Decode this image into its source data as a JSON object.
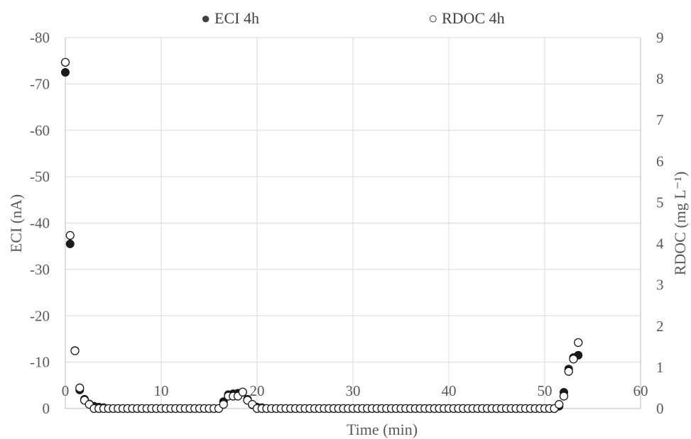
{
  "chart_data": {
    "type": "scatter",
    "title": "",
    "xlabel": "Time (min)",
    "ylabel_left": "ECI (nA)",
    "ylabel_right": "RDOC (mg L⁻¹)",
    "xlim": [
      0,
      60
    ],
    "ylim_left": [
      0,
      -80
    ],
    "ylim_right": [
      0,
      9
    ],
    "x_ticks": [
      0,
      10,
      20,
      30,
      40,
      50,
      60
    ],
    "y_left_ticks": [
      0,
      -10,
      -20,
      -30,
      -40,
      -50,
      -60,
      -70,
      -80
    ],
    "y_right_ticks": [
      0,
      1,
      2,
      3,
      4,
      5,
      6,
      7,
      8,
      9
    ],
    "grid": true,
    "legend_position": "top-center",
    "legend": [
      {
        "name": "ECI 4h",
        "marker": "●"
      },
      {
        "name": "RDOC 4h",
        "marker": "○"
      }
    ],
    "series": [
      {
        "name": "ECI 4h",
        "axis": "left",
        "marker": "filled-circle",
        "color": "#1a1a1a",
        "x": [
          0.0,
          0.5,
          1.0,
          1.5,
          2.0,
          2.5,
          3.0,
          3.5,
          4.0,
          4.5,
          5.0,
          5.5,
          6.0,
          6.5,
          7.0,
          7.5,
          8.0,
          8.5,
          9.0,
          9.5,
          10.0,
          10.5,
          11.0,
          11.5,
          12.0,
          12.5,
          13.0,
          13.5,
          14.0,
          14.5,
          15.0,
          15.5,
          16.0,
          16.5,
          17.0,
          17.5,
          18.0,
          18.5,
          19.0,
          19.5,
          20.0,
          20.5,
          21.0,
          21.5,
          22.0,
          22.5,
          23.0,
          23.5,
          24.0,
          24.5,
          25.0,
          25.5,
          26.0,
          26.5,
          27.0,
          27.5,
          28.0,
          28.5,
          29.0,
          29.5,
          30.0,
          30.5,
          31.0,
          31.5,
          32.0,
          32.5,
          33.0,
          33.5,
          34.0,
          34.5,
          35.0,
          35.5,
          36.0,
          36.5,
          37.0,
          37.5,
          38.0,
          38.5,
          39.0,
          39.5,
          40.0,
          40.5,
          41.0,
          41.5,
          42.0,
          42.5,
          43.0,
          43.5,
          44.0,
          44.5,
          45.0,
          45.5,
          46.0,
          46.5,
          47.0,
          47.5,
          48.0,
          48.5,
          49.0,
          49.5,
          50.0,
          50.5,
          51.0,
          51.5,
          52.0,
          52.5,
          53.0,
          53.5
        ],
        "y": [
          -72.5,
          -35.5,
          -12.5,
          -4.0,
          -2.0,
          -1.0,
          -0.5,
          -0.3,
          -0.2,
          0,
          0,
          0,
          0,
          0,
          0,
          0,
          0,
          0,
          0,
          0,
          0,
          0,
          0,
          0,
          0,
          0,
          0,
          0,
          0,
          0,
          0,
          0,
          0,
          -1.5,
          -3.0,
          -3.2,
          -3.3,
          -3.5,
          -2.0,
          -0.8,
          -0.3,
          -0.2,
          0,
          0,
          0,
          0,
          0,
          0,
          0,
          0,
          0,
          0,
          0,
          0,
          0,
          0,
          0,
          0,
          0,
          0,
          0,
          0,
          0,
          0,
          0,
          0,
          0,
          0,
          0,
          0,
          0,
          0,
          0,
          0,
          0,
          0,
          0,
          0,
          0,
          0,
          0,
          0,
          0,
          0,
          0,
          0,
          0,
          0,
          0,
          0,
          0,
          0,
          0,
          0,
          0,
          0,
          0,
          0,
          0,
          0,
          0,
          0,
          0,
          -0.5,
          -3.5,
          -8.5,
          -11.0,
          -11.5
        ]
      },
      {
        "name": "RDOC 4h",
        "axis": "right",
        "marker": "open-circle",
        "color": "#1a1a1a",
        "x": [
          0.0,
          0.5,
          1.0,
          1.5,
          2.0,
          2.5,
          3.0,
          3.5,
          4.0,
          4.5,
          5.0,
          5.5,
          6.0,
          6.5,
          7.0,
          7.5,
          8.0,
          8.5,
          9.0,
          9.5,
          10.0,
          10.5,
          11.0,
          11.5,
          12.0,
          12.5,
          13.0,
          13.5,
          14.0,
          14.5,
          15.0,
          15.5,
          16.0,
          16.5,
          17.0,
          17.5,
          18.0,
          18.5,
          19.0,
          19.5,
          20.0,
          20.5,
          21.0,
          21.5,
          22.0,
          22.5,
          23.0,
          23.5,
          24.0,
          24.5,
          25.0,
          25.5,
          26.0,
          26.5,
          27.0,
          27.5,
          28.0,
          28.5,
          29.0,
          29.5,
          30.0,
          30.5,
          31.0,
          31.5,
          32.0,
          32.5,
          33.0,
          33.5,
          34.0,
          34.5,
          35.0,
          35.5,
          36.0,
          36.5,
          37.0,
          37.5,
          38.0,
          38.5,
          39.0,
          39.5,
          40.0,
          40.5,
          41.0,
          41.5,
          42.0,
          42.5,
          43.0,
          43.5,
          44.0,
          44.5,
          45.0,
          45.5,
          46.0,
          46.5,
          47.0,
          47.5,
          48.0,
          48.5,
          49.0,
          49.5,
          50.0,
          50.5,
          51.0,
          51.5,
          52.0,
          52.5,
          53.0,
          53.5
        ],
        "y": [
          8.4,
          4.2,
          1.4,
          0.5,
          0.2,
          0.1,
          0.0,
          0.0,
          0.0,
          0,
          0,
          0,
          0,
          0,
          0,
          0,
          0,
          0,
          0,
          0,
          0,
          0,
          0,
          0,
          0,
          0,
          0,
          0,
          0,
          0,
          0,
          0,
          0,
          0.1,
          0.3,
          0.3,
          0.3,
          0.4,
          0.2,
          0.1,
          0.0,
          0.0,
          0,
          0,
          0,
          0,
          0,
          0,
          0,
          0,
          0,
          0,
          0,
          0,
          0,
          0,
          0,
          0,
          0,
          0,
          0,
          0,
          0,
          0,
          0,
          0,
          0,
          0,
          0,
          0,
          0,
          0,
          0,
          0,
          0,
          0,
          0,
          0,
          0,
          0,
          0,
          0,
          0,
          0,
          0,
          0,
          0,
          0,
          0,
          0,
          0,
          0,
          0,
          0,
          0,
          0,
          0,
          0,
          0,
          0,
          0,
          0,
          0,
          0.1,
          0.3,
          0.9,
          1.2,
          1.6
        ]
      }
    ]
  }
}
